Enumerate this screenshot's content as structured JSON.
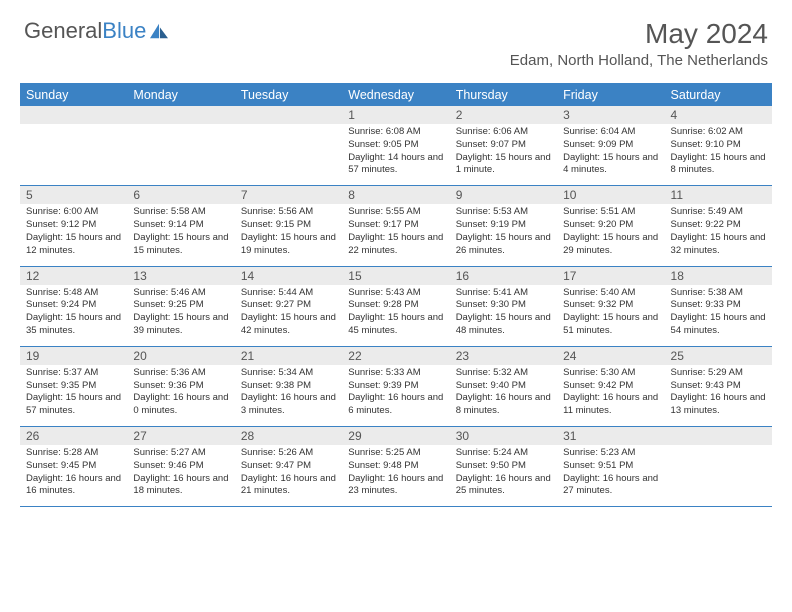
{
  "brand": {
    "name_gray": "General",
    "name_blue": "Blue"
  },
  "title": "May 2024",
  "location": "Edam, North Holland, The Netherlands",
  "colors": {
    "header_bg": "#3b82c4",
    "daynum_bg": "#ebebeb",
    "text": "#555555",
    "border": "#3b82c4"
  },
  "weekdays": [
    "Sunday",
    "Monday",
    "Tuesday",
    "Wednesday",
    "Thursday",
    "Friday",
    "Saturday"
  ],
  "weeks": [
    [
      null,
      null,
      null,
      {
        "n": "1",
        "sr": "6:08 AM",
        "ss": "9:05 PM",
        "dl": "14 hours and 57 minutes."
      },
      {
        "n": "2",
        "sr": "6:06 AM",
        "ss": "9:07 PM",
        "dl": "15 hours and 1 minute."
      },
      {
        "n": "3",
        "sr": "6:04 AM",
        "ss": "9:09 PM",
        "dl": "15 hours and 4 minutes."
      },
      {
        "n": "4",
        "sr": "6:02 AM",
        "ss": "9:10 PM",
        "dl": "15 hours and 8 minutes."
      }
    ],
    [
      {
        "n": "5",
        "sr": "6:00 AM",
        "ss": "9:12 PM",
        "dl": "15 hours and 12 minutes."
      },
      {
        "n": "6",
        "sr": "5:58 AM",
        "ss": "9:14 PM",
        "dl": "15 hours and 15 minutes."
      },
      {
        "n": "7",
        "sr": "5:56 AM",
        "ss": "9:15 PM",
        "dl": "15 hours and 19 minutes."
      },
      {
        "n": "8",
        "sr": "5:55 AM",
        "ss": "9:17 PM",
        "dl": "15 hours and 22 minutes."
      },
      {
        "n": "9",
        "sr": "5:53 AM",
        "ss": "9:19 PM",
        "dl": "15 hours and 26 minutes."
      },
      {
        "n": "10",
        "sr": "5:51 AM",
        "ss": "9:20 PM",
        "dl": "15 hours and 29 minutes."
      },
      {
        "n": "11",
        "sr": "5:49 AM",
        "ss": "9:22 PM",
        "dl": "15 hours and 32 minutes."
      }
    ],
    [
      {
        "n": "12",
        "sr": "5:48 AM",
        "ss": "9:24 PM",
        "dl": "15 hours and 35 minutes."
      },
      {
        "n": "13",
        "sr": "5:46 AM",
        "ss": "9:25 PM",
        "dl": "15 hours and 39 minutes."
      },
      {
        "n": "14",
        "sr": "5:44 AM",
        "ss": "9:27 PM",
        "dl": "15 hours and 42 minutes."
      },
      {
        "n": "15",
        "sr": "5:43 AM",
        "ss": "9:28 PM",
        "dl": "15 hours and 45 minutes."
      },
      {
        "n": "16",
        "sr": "5:41 AM",
        "ss": "9:30 PM",
        "dl": "15 hours and 48 minutes."
      },
      {
        "n": "17",
        "sr": "5:40 AM",
        "ss": "9:32 PM",
        "dl": "15 hours and 51 minutes."
      },
      {
        "n": "18",
        "sr": "5:38 AM",
        "ss": "9:33 PM",
        "dl": "15 hours and 54 minutes."
      }
    ],
    [
      {
        "n": "19",
        "sr": "5:37 AM",
        "ss": "9:35 PM",
        "dl": "15 hours and 57 minutes."
      },
      {
        "n": "20",
        "sr": "5:36 AM",
        "ss": "9:36 PM",
        "dl": "16 hours and 0 minutes."
      },
      {
        "n": "21",
        "sr": "5:34 AM",
        "ss": "9:38 PM",
        "dl": "16 hours and 3 minutes."
      },
      {
        "n": "22",
        "sr": "5:33 AM",
        "ss": "9:39 PM",
        "dl": "16 hours and 6 minutes."
      },
      {
        "n": "23",
        "sr": "5:32 AM",
        "ss": "9:40 PM",
        "dl": "16 hours and 8 minutes."
      },
      {
        "n": "24",
        "sr": "5:30 AM",
        "ss": "9:42 PM",
        "dl": "16 hours and 11 minutes."
      },
      {
        "n": "25",
        "sr": "5:29 AM",
        "ss": "9:43 PM",
        "dl": "16 hours and 13 minutes."
      }
    ],
    [
      {
        "n": "26",
        "sr": "5:28 AM",
        "ss": "9:45 PM",
        "dl": "16 hours and 16 minutes."
      },
      {
        "n": "27",
        "sr": "5:27 AM",
        "ss": "9:46 PM",
        "dl": "16 hours and 18 minutes."
      },
      {
        "n": "28",
        "sr": "5:26 AM",
        "ss": "9:47 PM",
        "dl": "16 hours and 21 minutes."
      },
      {
        "n": "29",
        "sr": "5:25 AM",
        "ss": "9:48 PM",
        "dl": "16 hours and 23 minutes."
      },
      {
        "n": "30",
        "sr": "5:24 AM",
        "ss": "9:50 PM",
        "dl": "16 hours and 25 minutes."
      },
      {
        "n": "31",
        "sr": "5:23 AM",
        "ss": "9:51 PM",
        "dl": "16 hours and 27 minutes."
      },
      null
    ]
  ],
  "labels": {
    "sunrise": "Sunrise:",
    "sunset": "Sunset:",
    "daylight": "Daylight:"
  }
}
